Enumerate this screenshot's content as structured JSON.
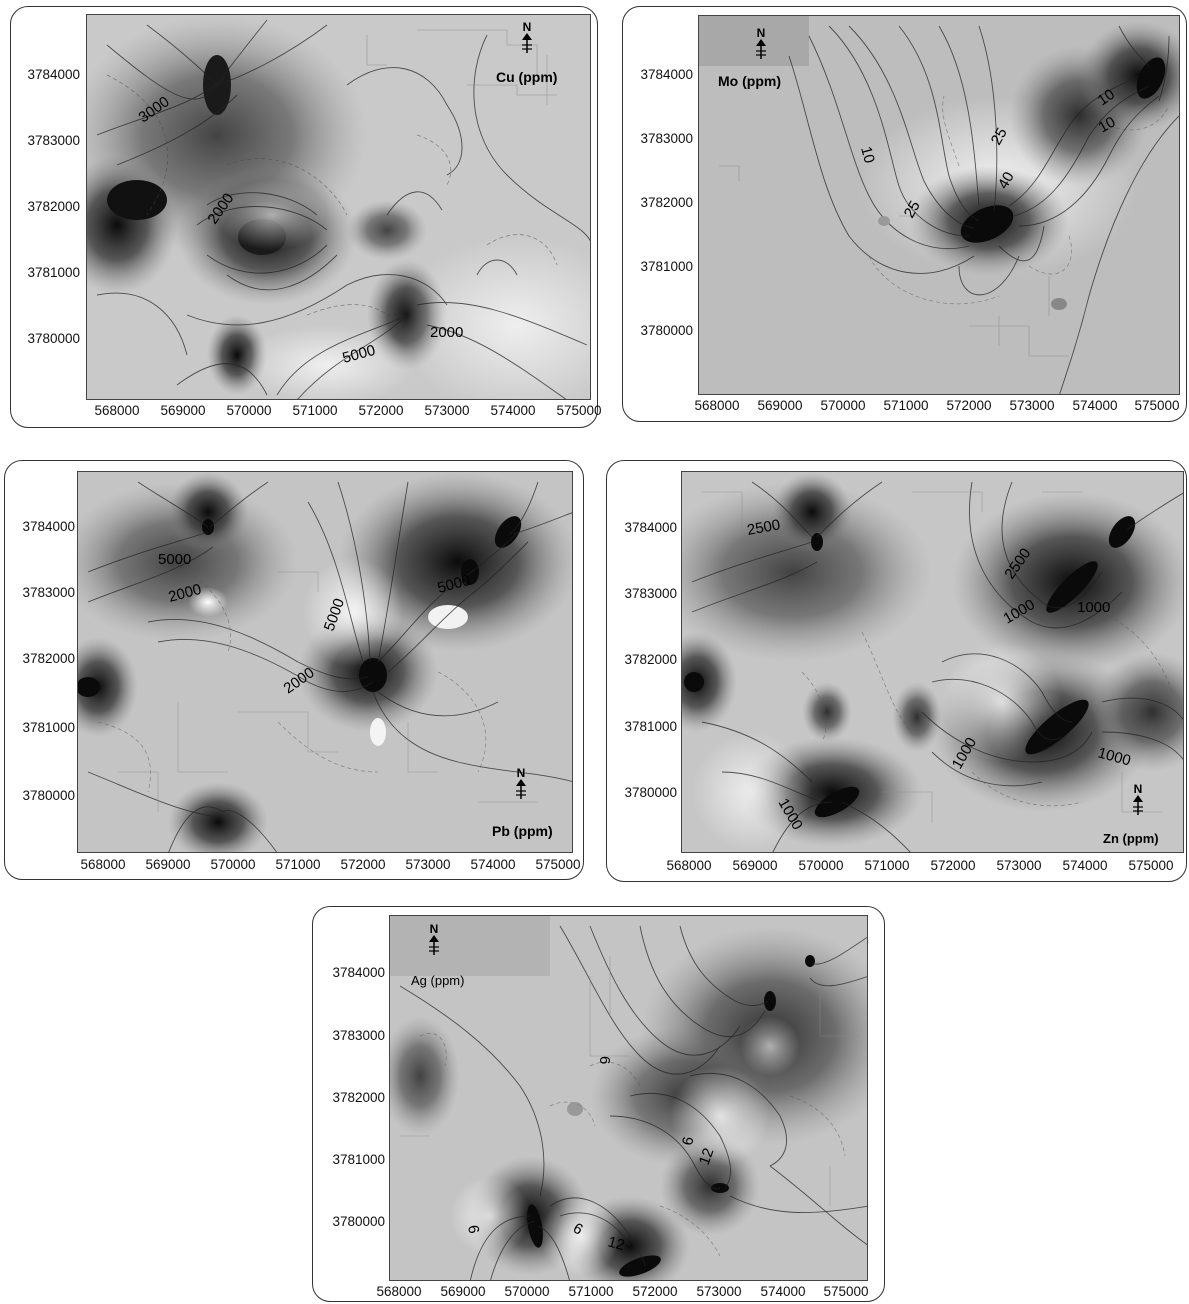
{
  "maps": [
    {
      "id": "cu",
      "element_label": "Cu (ppm)",
      "north_label": "N",
      "y_ticks": [
        "3784000",
        "3783000",
        "3782000",
        "3781000",
        "3780000"
      ],
      "x_ticks": [
        "568000",
        "569000",
        "570000",
        "571000",
        "572000",
        "573000",
        "574000",
        "575000"
      ],
      "contour_labels": [
        "3000",
        "2000",
        "2000",
        "5000"
      ]
    },
    {
      "id": "mo",
      "element_label": "Mo (ppm)",
      "north_label": "N",
      "y_ticks": [
        "3784000",
        "3783000",
        "3782000",
        "3781000",
        "3780000"
      ],
      "x_ticks": [
        "568000",
        "569000",
        "570000",
        "571000",
        "572000",
        "573000",
        "574000",
        "575000"
      ],
      "contour_labels": [
        "10",
        "25",
        "40",
        "25",
        "10",
        "10"
      ]
    },
    {
      "id": "pb",
      "element_label": "Pb (ppm)",
      "north_label": "N",
      "y_ticks": [
        "3784000",
        "3783000",
        "3782000",
        "3781000",
        "3780000"
      ],
      "x_ticks": [
        "568000",
        "569000",
        "570000",
        "571000",
        "572000",
        "573000",
        "574000",
        "575000"
      ],
      "contour_labels": [
        "5000",
        "2000",
        "5000",
        "2000",
        "5000"
      ]
    },
    {
      "id": "zn",
      "element_label": "Zn (ppm)",
      "north_label": "N",
      "y_ticks": [
        "3784000",
        "3783000",
        "3782000",
        "3781000",
        "3780000"
      ],
      "x_ticks": [
        "568000",
        "569000",
        "570000",
        "571000",
        "572000",
        "573000",
        "574000",
        "575000"
      ],
      "contour_labels": [
        "2500",
        "2500",
        "1000",
        "1000",
        "1000",
        "1000",
        "1000"
      ]
    },
    {
      "id": "ag",
      "element_label": "Ag (ppm)",
      "north_label": "N",
      "y_ticks": [
        "3784000",
        "3783000",
        "3782000",
        "3781000",
        "3780000"
      ],
      "x_ticks": [
        "568000",
        "569000",
        "570000",
        "571000",
        "572000",
        "573000",
        "574000",
        "575000"
      ],
      "contour_labels": [
        "6",
        "6",
        "12",
        "6",
        "6",
        "12"
      ]
    }
  ]
}
